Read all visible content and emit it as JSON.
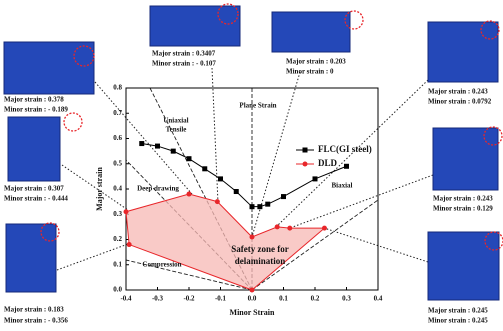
{
  "chart_data": {
    "type": "line",
    "x_label": "Minor Strain",
    "y_label": "Major strain",
    "xlim": [
      -0.4,
      0.4
    ],
    "xticks": [
      -0.4,
      -0.3,
      -0.2,
      -0.1,
      {
        "value": 0,
        "label": "0.0"
      },
      0.1,
      0.2,
      0.3,
      0.4
    ],
    "ylim": [
      0,
      0.8
    ],
    "yticks": [
      {
        "value": 0,
        "label": "0.0"
      },
      0.1,
      0.2,
      0.3,
      0.4,
      0.5,
      0.6,
      0.7,
      0.8
    ],
    "legend": "upper right",
    "series": [
      {
        "name": "FLC(GI steel)",
        "color": "#000000",
        "marker": "square",
        "x": [
          -0.35,
          -0.3,
          -0.25,
          -0.2,
          -0.15,
          -0.1,
          -0.05,
          0,
          0.025,
          0.05,
          0.1,
          0.2,
          0.3
        ],
        "values": [
          0.58,
          0.57,
          0.55,
          0.52,
          0.48,
          0.44,
          0.39,
          0.33,
          0.33,
          0.34,
          0.37,
          0.44,
          0.49
        ]
      },
      {
        "name": "DLD",
        "color": "#e8262a",
        "marker": "circle",
        "fill": "#f7b8b4",
        "x": [
          -0.4,
          -0.2,
          -0.11,
          0,
          0.08,
          0.12,
          0.23,
          0,
          -0.39
        ],
        "values": [
          0.31,
          0.38,
          0.35,
          0.21,
          0.25,
          0.245,
          0.245,
          0,
          0.18
        ]
      }
    ],
    "annotations": {
      "uniaxial": [
        "Uniaxial",
        "Tensile"
      ],
      "plane_strain": "Plane Strain",
      "deep_drawing": "Deep drawing",
      "biaxial": "Biaxial",
      "compression": "Compression",
      "safety_zone": [
        "Safety zone for",
        "delamination"
      ]
    }
  },
  "panels": [
    {
      "major": "Major strain : 0.378",
      "minor": "Minor strain : - 0.189"
    },
    {
      "major": "Major strain : 0.307",
      "minor": "Minor strain : - 0.444"
    },
    {
      "major": "Major strain : 0.183",
      "minor": "Minor strain : - 0.356"
    },
    {
      "major": "Major strain : 0.3407",
      "minor": "Minor strain : - 0.107"
    },
    {
      "major": "Major strain : 0.203",
      "minor": "Minor strain : 0"
    },
    {
      "major": "Major strain : 0.243",
      "minor": "Minor strain : 0.0792"
    },
    {
      "major": "Major strain : 0.243",
      "minor": "Minor strain : 0.129"
    },
    {
      "major": "Major strain : 0.245",
      "minor": "Minor strain : 0.245"
    }
  ]
}
